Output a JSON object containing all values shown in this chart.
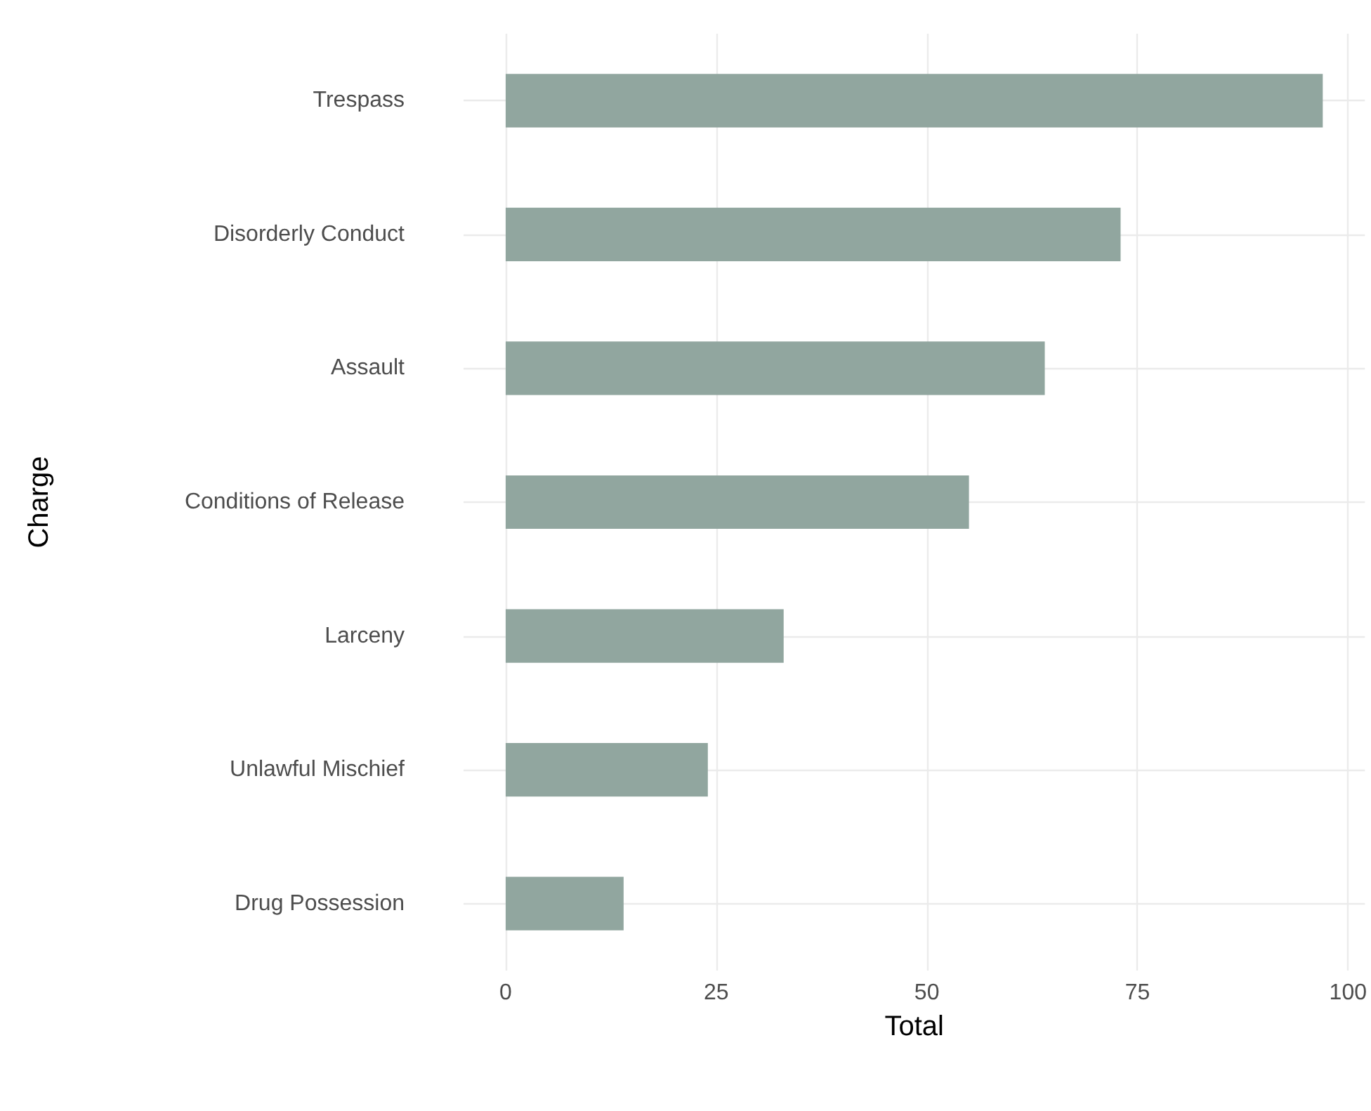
{
  "chart_data": {
    "type": "bar",
    "orientation": "horizontal",
    "xlabel": "Total",
    "ylabel": "Charge",
    "categories": [
      "Trespass",
      "Disorderly Conduct",
      "Assault",
      "Conditions of Release",
      "Larceny",
      "Unlawful Mischief",
      "Drug Possession"
    ],
    "values": [
      97,
      73,
      64,
      55,
      33,
      24,
      14
    ],
    "color": "#91a69f",
    "xlim": [
      -5,
      102
    ],
    "xticks": [
      0,
      25,
      50,
      75,
      100
    ],
    "grid": true
  }
}
